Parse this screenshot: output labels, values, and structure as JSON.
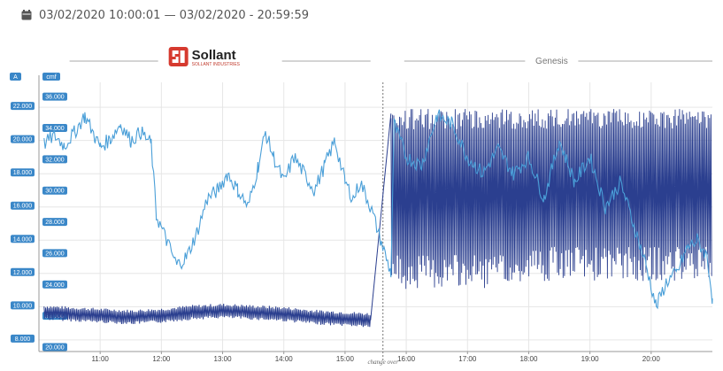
{
  "header": {
    "date_range": "03/02/2020 10:00:01 — 03/02/2020 - 20:59:59"
  },
  "colors": {
    "current": "#4a9fd8",
    "cmf": "#2b3f8f",
    "axis_badge": "#3a87c8",
    "grid": "#e6e6e6",
    "logo_red": "#d63a2f"
  },
  "chart_data": {
    "type": "line",
    "x_ticks": [
      "11:00",
      "12:00",
      "13:00",
      "14:00",
      "15:00",
      "16:00",
      "17:00",
      "18:00",
      "19:00",
      "20:00"
    ],
    "x_range": [
      "10:00",
      "21:00"
    ],
    "left_axis": {
      "badge": "A",
      "ticks": [
        "22.000",
        "20.000",
        "18.000",
        "16.000",
        "14.000",
        "12.000",
        "10.000",
        "8.000"
      ],
      "range": [
        7.3,
        23.5
      ]
    },
    "right_axis": {
      "badge": "cmf",
      "ticks": [
        "36.000",
        "34.000",
        "32.000",
        "30.000",
        "28.000",
        "26.000",
        "24.000",
        "22.000",
        "20.000"
      ],
      "range": [
        19.8,
        37.0
      ]
    },
    "segments": [
      {
        "name": "Sollant",
        "brand_text": "Sollant",
        "brand_sub": "SOLLANT INDUSTRIES",
        "from": "10:00",
        "to": "15:25"
      },
      {
        "name": "Genesis",
        "from": "15:45",
        "to": "21:00"
      }
    ],
    "annotation": {
      "label": "change over",
      "time": "15:25"
    },
    "series": [
      {
        "name": "A",
        "axis": "left",
        "points": [
          [
            "10:05",
            19.8
          ],
          [
            "10:15",
            20.3
          ],
          [
            "10:25",
            19.7
          ],
          [
            "10:35",
            20.5
          ],
          [
            "10:45",
            21.5
          ],
          [
            "10:55",
            20.2
          ],
          [
            "11:00",
            19.6
          ],
          [
            "11:10",
            20.1
          ],
          [
            "11:20",
            21.0
          ],
          [
            "11:30",
            20.0
          ],
          [
            "11:40",
            20.5
          ],
          [
            "11:50",
            19.8
          ],
          [
            "11:55",
            15.5
          ],
          [
            "12:05",
            14.0
          ],
          [
            "12:15",
            12.5
          ],
          [
            "12:25",
            13.0
          ],
          [
            "12:35",
            14.5
          ],
          [
            "12:45",
            16.5
          ],
          [
            "12:55",
            17.0
          ],
          [
            "13:05",
            18.0
          ],
          [
            "13:15",
            17.0
          ],
          [
            "13:25",
            16.0
          ],
          [
            "13:35",
            18.5
          ],
          [
            "13:42",
            20.5
          ],
          [
            "13:50",
            19.0
          ],
          [
            "14:00",
            17.5
          ],
          [
            "14:10",
            19.0
          ],
          [
            "14:20",
            18.0
          ],
          [
            "14:30",
            17.0
          ],
          [
            "14:40",
            18.5
          ],
          [
            "14:50",
            20.0
          ],
          [
            "15:00",
            17.5
          ],
          [
            "15:08",
            16.5
          ],
          [
            "15:15",
            17.5
          ],
          [
            "15:25",
            16.0
          ],
          [
            "15:45",
            12.0
          ],
          [
            "15:48",
            21.0
          ],
          [
            "16:00",
            19.0
          ],
          [
            "16:15",
            18.5
          ],
          [
            "16:30",
            21.5
          ],
          [
            "16:45",
            21.0
          ],
          [
            "17:00",
            19.0
          ],
          [
            "17:15",
            18.0
          ],
          [
            "17:30",
            19.5
          ],
          [
            "17:45",
            18.0
          ],
          [
            "18:00",
            19.0
          ],
          [
            "18:15",
            16.5
          ],
          [
            "18:30",
            20.0
          ],
          [
            "18:45",
            17.5
          ],
          [
            "19:00",
            19.0
          ],
          [
            "19:15",
            16.0
          ],
          [
            "19:30",
            17.5
          ],
          [
            "19:45",
            14.5
          ],
          [
            "19:55",
            12.5
          ],
          [
            "20:05",
            10.0
          ],
          [
            "20:15",
            11.5
          ],
          [
            "20:25",
            12.0
          ],
          [
            "20:35",
            13.5
          ],
          [
            "20:45",
            14.0
          ],
          [
            "20:55",
            13.0
          ],
          [
            "21:00",
            10.5
          ]
        ]
      },
      {
        "name": "cmf",
        "axis": "right",
        "points": [
          [
            "10:05",
            22.3
          ],
          [
            "10:30",
            22.2
          ],
          [
            "11:00",
            22.1
          ],
          [
            "11:30",
            22.0
          ],
          [
            "12:00",
            22.1
          ],
          [
            "12:30",
            22.3
          ],
          [
            "13:00",
            22.4
          ],
          [
            "13:30",
            22.3
          ],
          [
            "14:00",
            22.2
          ],
          [
            "14:30",
            22.0
          ],
          [
            "15:00",
            21.9
          ],
          [
            "15:25",
            21.8
          ],
          [
            "15:45",
            35.0
          ],
          [
            "16:30",
            35.2
          ],
          [
            "17:30",
            35.0
          ],
          [
            "18:30",
            35.2
          ],
          [
            "19:30",
            35.3
          ],
          [
            "21:00",
            35.3
          ]
        ],
        "oscillation_amplitude_segment1": 0.6,
        "band_segment2": {
          "low": 23.8,
          "high": 35.3
        }
      }
    ]
  }
}
